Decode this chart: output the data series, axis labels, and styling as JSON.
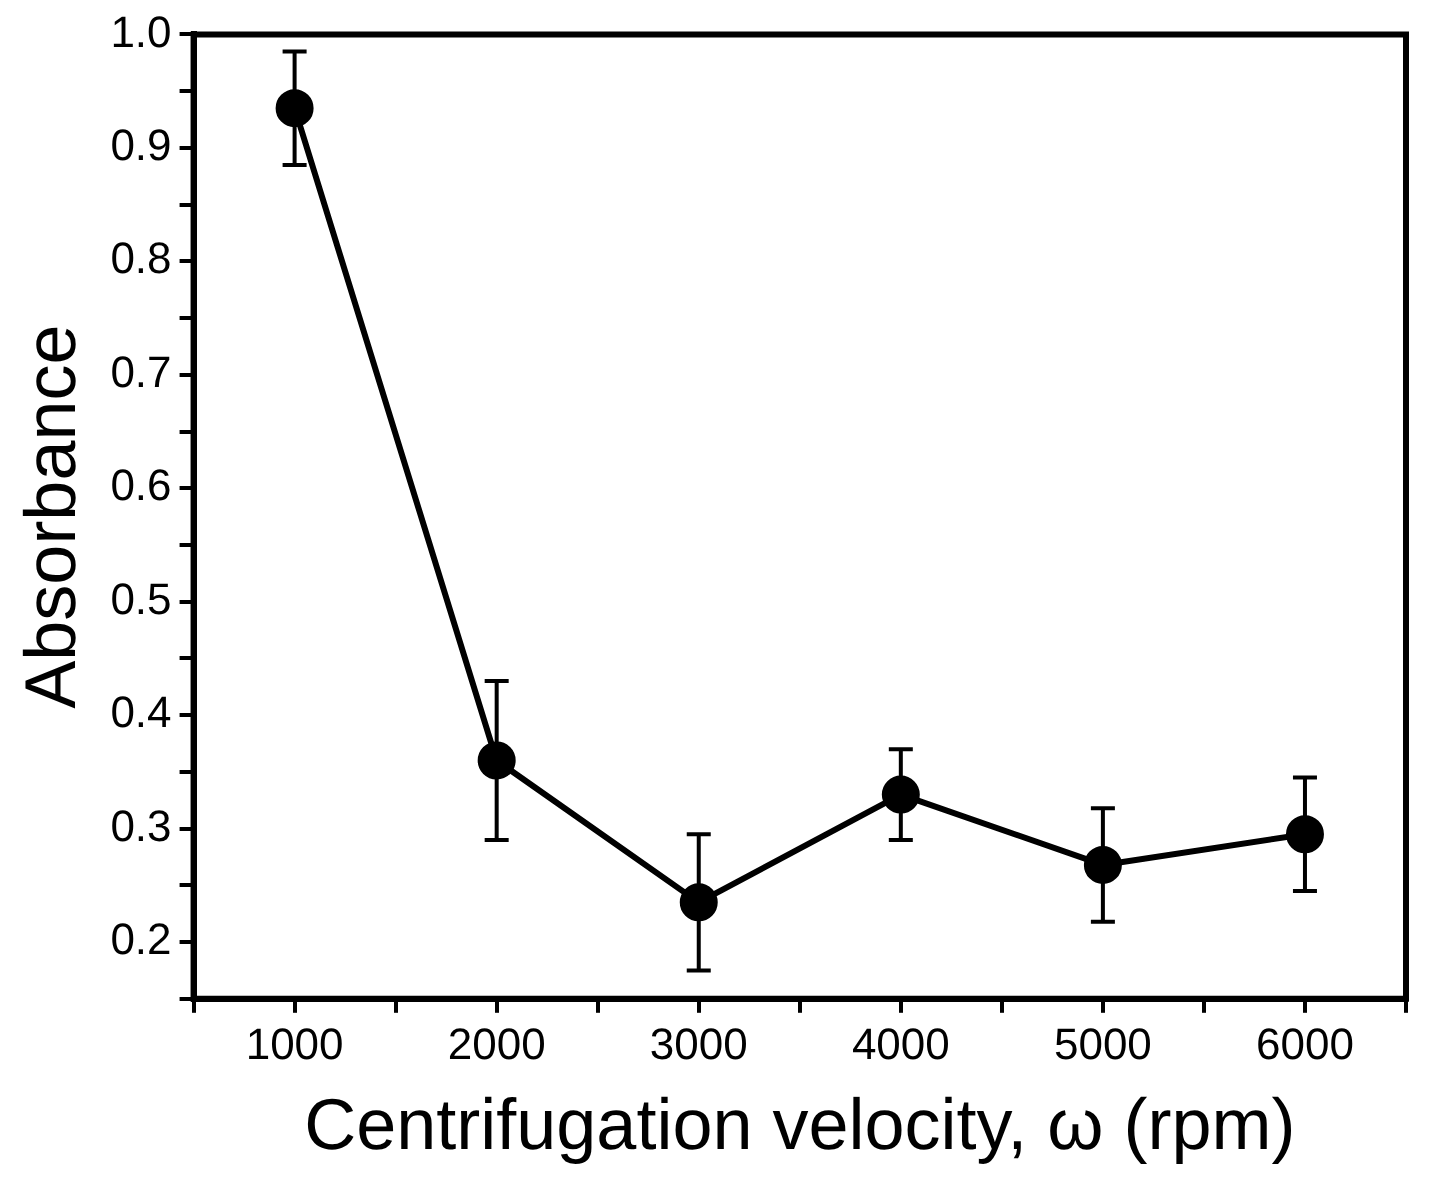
{
  "chart_data": {
    "type": "line",
    "xlabel": "Centrifugation velocity, ω (rpm)",
    "ylabel": "Absorbance",
    "x": [
      1000,
      2000,
      3000,
      4000,
      5000,
      6000
    ],
    "series": [
      {
        "color": "#000000",
        "values": [
          0.935,
          0.36,
          0.235,
          0.33,
          0.268,
          0.295
        ],
        "errors": [
          [
            0.885,
            0.985
          ],
          [
            0.29,
            0.43
          ],
          [
            0.175,
            0.295
          ],
          [
            0.29,
            0.37
          ],
          [
            0.218,
            0.318
          ],
          [
            0.245,
            0.345
          ]
        ]
      }
    ],
    "xlim": [
      500,
      6500
    ],
    "xticks": [
      {
        "value": 500,
        "label": null
      },
      1000,
      {
        "value": 1500,
        "label": null
      },
      2000,
      {
        "value": 2500,
        "label": null
      },
      3000,
      {
        "value": 3500,
        "label": null
      },
      4000,
      {
        "value": 4500,
        "label": null
      },
      5000,
      {
        "value": 5500,
        "label": null
      },
      6000,
      {
        "value": 6500,
        "label": null
      }
    ],
    "ylim": [
      0.15,
      1.0
    ],
    "yticks": [
      {
        "value": 0.15,
        "label": null
      },
      0.2,
      {
        "value": 0.25,
        "label": null
      },
      0.3,
      {
        "value": 0.35,
        "label": null
      },
      0.4,
      {
        "value": 0.45,
        "label": null
      },
      0.5,
      {
        "value": 0.55,
        "label": null
      },
      0.6,
      {
        "value": 0.65,
        "label": null
      },
      0.7,
      {
        "value": 0.75,
        "label": null
      },
      0.8,
      {
        "value": 0.85,
        "label": null
      },
      0.9,
      {
        "value": 0.95,
        "label": null
      },
      {
        "value": 1,
        "label": "1.0"
      }
    ],
    "grid": false,
    "legend": false,
    "marker": "circle",
    "line_style": "solid"
  }
}
